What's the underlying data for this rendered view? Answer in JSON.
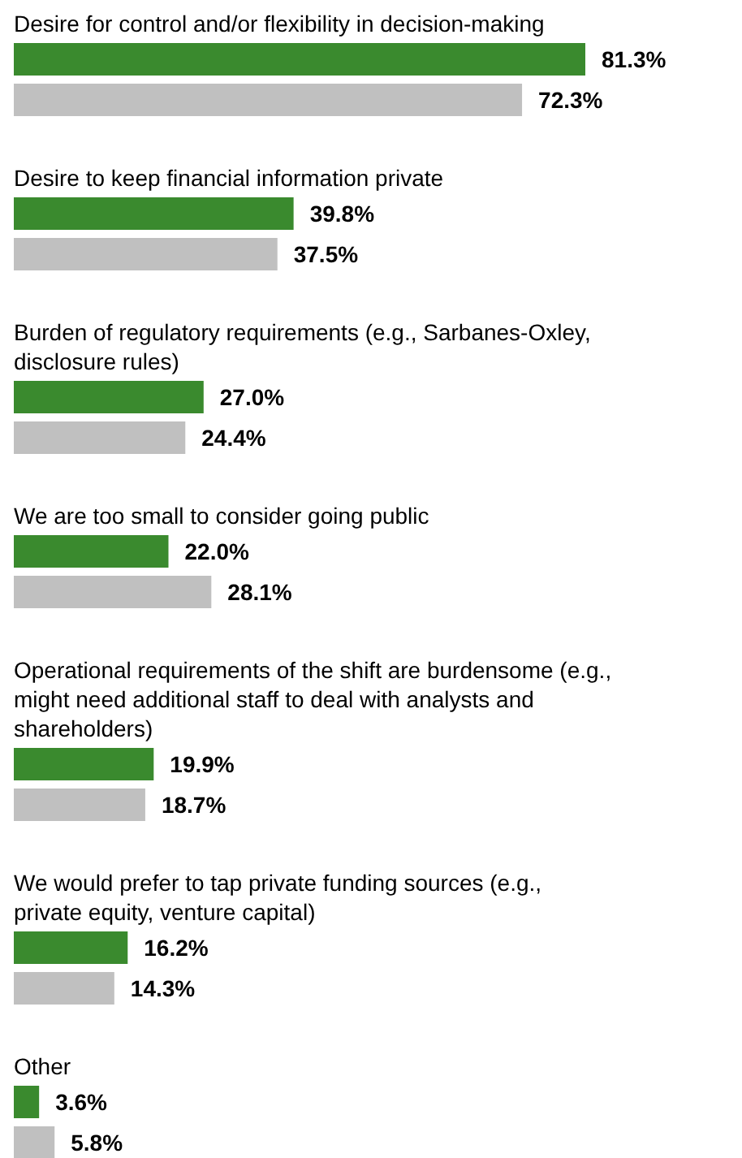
{
  "chart_data": {
    "type": "bar",
    "orientation": "horizontal",
    "categories": [
      "Desire for control and/or flexibility in decision-making",
      "Desire to keep financial information private",
      "Burden of regulatory requirements (e.g., Sarbanes-Oxley, disclosure rules)",
      "We are too small to consider going public",
      "Operational requirements of the shift are burdensome (e.g., might need additional staff to deal with analysts and shareholders)",
      "We would prefer to tap private funding sources (e.g., private equity, venture capital)",
      "Other"
    ],
    "series": [
      {
        "color": "#3a8a2e",
        "values": [
          81.3,
          39.8,
          27.0,
          22.0,
          19.9,
          16.2,
          3.6
        ],
        "value_labels": [
          "81.3%",
          "39.8%",
          "27.0%",
          "22.0%",
          "19.9%",
          "16.2%",
          "3.6%"
        ]
      },
      {
        "color": "#c0c0c0",
        "values": [
          72.3,
          37.5,
          24.4,
          28.1,
          18.7,
          14.3,
          5.8
        ],
        "value_labels": [
          "72.3%",
          "37.5%",
          "24.4%",
          "28.1%",
          "18.7%",
          "14.3%",
          "5.8%"
        ]
      }
    ],
    "grid": false
  }
}
